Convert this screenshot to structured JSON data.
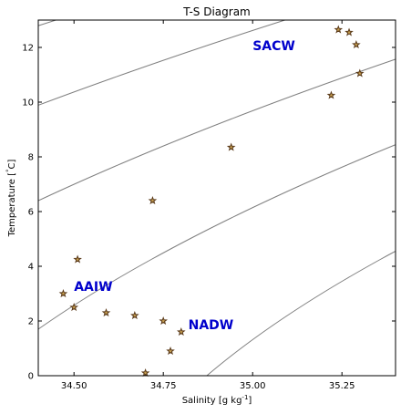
{
  "chart_data": {
    "type": "scatter",
    "title": "T-S Diagram",
    "xlabel": "Salinity [g kg",
    "xlabel_sup": "-1",
    "xlabel_end": "]",
    "ylabel": "Temperature [",
    "ylabel_sup": "°",
    "ylabel_end": "C]",
    "xlim": [
      34.4,
      35.4
    ],
    "ylim": [
      0,
      13
    ],
    "xticks": [
      34.5,
      34.75,
      35.0,
      35.25
    ],
    "xtick_labels": [
      "34.50",
      "34.75",
      "35.00",
      "35.25"
    ],
    "yticks": [
      0,
      2,
      4,
      6,
      8,
      10,
      12
    ],
    "ytick_labels": [
      "0",
      "2",
      "4",
      "6",
      "8",
      "10",
      "12"
    ],
    "marker": "star",
    "marker_fill": "#c8a050",
    "marker_edge": "#5a3a1a",
    "contour_color": "#808080",
    "density_contours": [
      25.0,
      25.5,
      26.0,
      26.5,
      27.0,
      27.5,
      28.0
    ],
    "points": [
      {
        "x": 34.47,
        "y": 3.0
      },
      {
        "x": 34.51,
        "y": 4.25
      },
      {
        "x": 34.5,
        "y": 2.5
      },
      {
        "x": 34.59,
        "y": 2.3
      },
      {
        "x": 34.67,
        "y": 2.2
      },
      {
        "x": 34.7,
        "y": 0.1
      },
      {
        "x": 34.72,
        "y": 6.4
      },
      {
        "x": 34.75,
        "y": 2.0
      },
      {
        "x": 34.77,
        "y": 0.9
      },
      {
        "x": 34.8,
        "y": 1.6
      },
      {
        "x": 34.94,
        "y": 8.35
      },
      {
        "x": 35.22,
        "y": 10.25
      },
      {
        "x": 35.24,
        "y": 12.65
      },
      {
        "x": 35.27,
        "y": 12.55
      },
      {
        "x": 35.29,
        "y": 12.1
      },
      {
        "x": 35.3,
        "y": 11.05
      }
    ],
    "annotations": [
      {
        "text": "SACW",
        "x": 35.0,
        "y": 11.9
      },
      {
        "text": "AAIW",
        "x": 34.5,
        "y": 3.1
      },
      {
        "text": "NADW",
        "x": 34.82,
        "y": 1.7
      }
    ]
  }
}
